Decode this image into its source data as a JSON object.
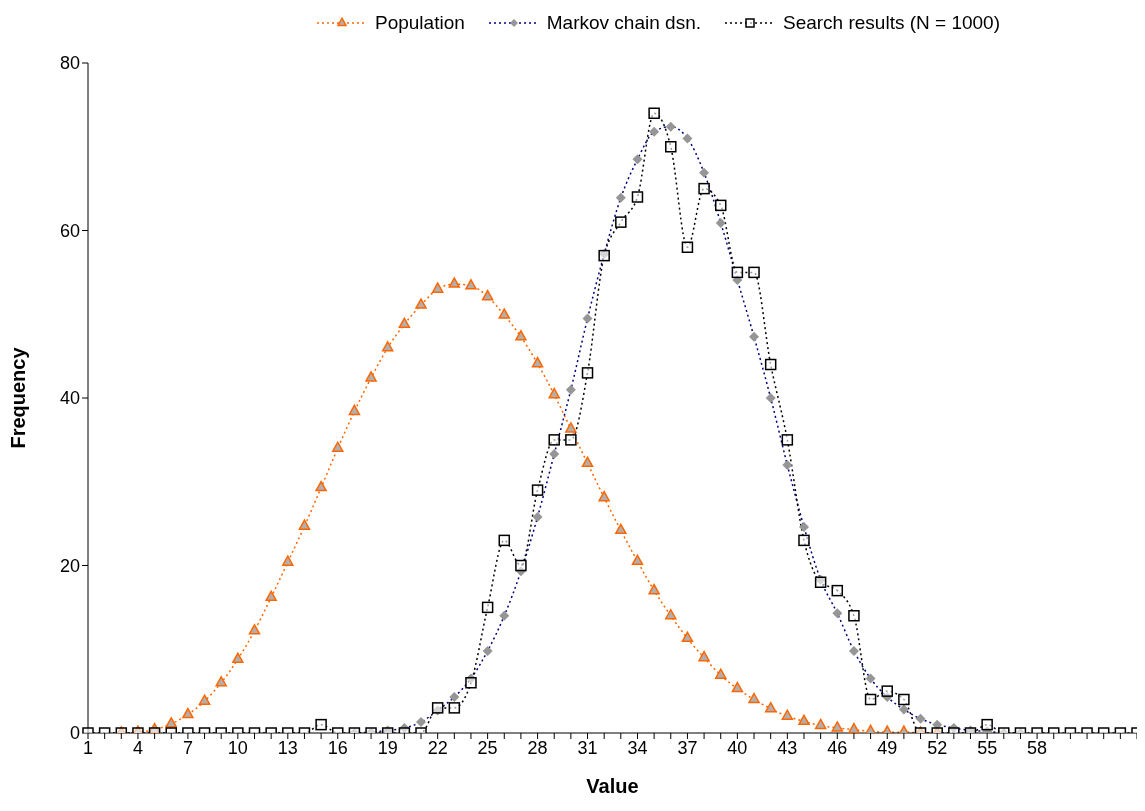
{
  "chart_data": {
    "type": "line",
    "xlabel": "Value",
    "ylabel": "Frequency",
    "categories": [
      "1",
      null,
      null,
      "4",
      null,
      null,
      "7",
      null,
      null,
      "10",
      null,
      null,
      "13",
      null,
      null,
      "16",
      null,
      null,
      "19",
      null,
      null,
      "22",
      null,
      null,
      "25",
      null,
      null,
      "28",
      null,
      null,
      "31",
      null,
      null,
      "34",
      null,
      null,
      "37",
      null,
      null,
      "40",
      null,
      null,
      "43",
      null,
      null,
      "46",
      null,
      null,
      "49",
      null,
      null,
      "52",
      null,
      null,
      "55",
      null,
      null,
      "58",
      null,
      null,
      null,
      null,
      null,
      null
    ],
    "series": [
      {
        "name": "Population",
        "color": "#ff6600",
        "marker": "triangle",
        "values": [
          null,
          null,
          0,
          0.1,
          0.4,
          1.1,
          2.2,
          3.8,
          6,
          8.8,
          12.2,
          16.2,
          20.4,
          24.7,
          29.3,
          34,
          38.4,
          42.4,
          46,
          48.8,
          51.1,
          53,
          53.6,
          53.4,
          52.1,
          49.9,
          47.3,
          44.1,
          40.4,
          36.3,
          32.2,
          28.1,
          24.2,
          20.5,
          17,
          14,
          11.3,
          9,
          6.9,
          5.3,
          4,
          2.9,
          2,
          1.4,
          0.9,
          0.6,
          0.4,
          0.2,
          0.1,
          0.1,
          0,
          0,
          null,
          null,
          null,
          null,
          null,
          null,
          null,
          null,
          null,
          null,
          null,
          null
        ]
      },
      {
        "name": "Markov chain dsn.",
        "color": "#000080",
        "marker": "diamond",
        "values": [
          null,
          null,
          null,
          null,
          null,
          null,
          null,
          null,
          null,
          null,
          null,
          null,
          null,
          null,
          null,
          null,
          0,
          0.1,
          0.3,
          0.6,
          1.3,
          2.7,
          4.3,
          6.5,
          9.8,
          14,
          19.3,
          25.8,
          33.3,
          41,
          49.5,
          57.2,
          63.9,
          68.5,
          71.8,
          72.4,
          71,
          66.9,
          60.9,
          54.1,
          47.3,
          40,
          32,
          24.6,
          18.3,
          14.3,
          9.8,
          6.5,
          4.3,
          2.8,
          1.7,
          1,
          0.6,
          0.3,
          0.2,
          0,
          0,
          null,
          null,
          null,
          null,
          null,
          null,
          null
        ]
      },
      {
        "name": "Search results (N = 1000)",
        "color": "#000000",
        "marker": "square",
        "values": [
          0,
          0,
          0,
          0,
          0,
          0,
          0,
          0,
          0,
          0,
          0,
          0,
          0,
          0,
          1,
          0,
          0,
          0,
          0,
          0,
          0,
          3,
          3,
          6,
          15,
          23,
          20,
          29,
          35,
          35,
          43,
          57,
          61,
          64,
          74,
          70,
          58,
          65,
          63,
          55,
          55,
          44,
          35,
          23,
          18,
          17,
          14,
          4,
          5,
          4,
          0,
          0,
          0,
          0,
          1,
          0,
          0,
          0,
          0,
          0,
          0,
          0,
          0,
          0
        ]
      }
    ],
    "ylim": [
      0,
      80
    ],
    "yticks": [
      0,
      20,
      40,
      60,
      80
    ],
    "grid": false,
    "legend": "top",
    "line_style": "dotted"
  }
}
